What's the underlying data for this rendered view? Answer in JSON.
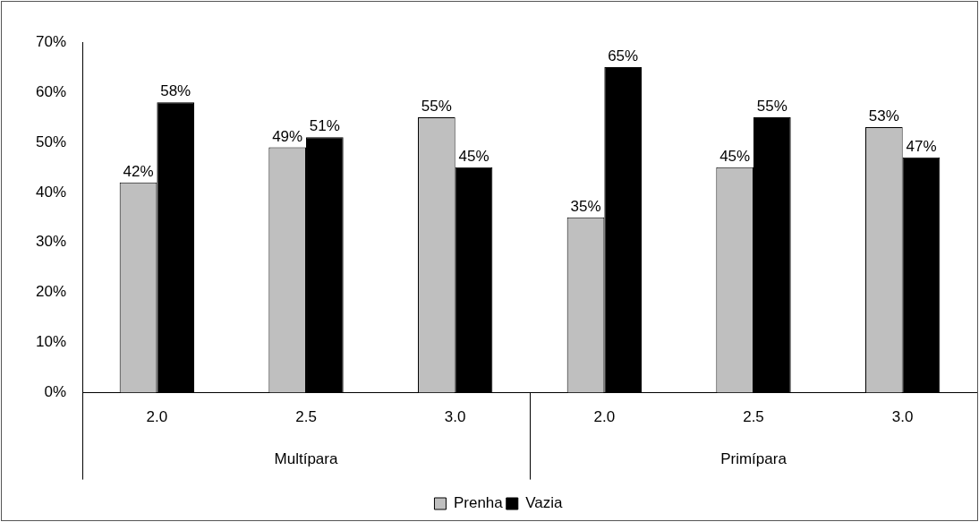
{
  "chart_data": {
    "type": "bar",
    "categories": [
      "2.0",
      "2.5",
      "3.0",
      "2.0",
      "2.5",
      "3.0"
    ],
    "series": [
      {
        "name": "Prenha",
        "color": "#bfbfbf",
        "values": [
          42,
          49,
          55,
          35,
          45,
          53
        ],
        "value_labels": [
          "42%",
          "49%",
          "55%",
          "35%",
          "45%",
          "53%"
        ]
      },
      {
        "name": "Vazia",
        "color": "#000000",
        "values": [
          58,
          51,
          45,
          65,
          55,
          47
        ],
        "value_labels": [
          "58%",
          "51%",
          "45%",
          "65%",
          "55%",
          "47%"
        ]
      }
    ],
    "ylim": [
      0,
      70
    ],
    "yticks": [
      {
        "value": 0,
        "label": "0%"
      },
      {
        "value": 10,
        "label": "10%"
      },
      {
        "value": 20,
        "label": "20%"
      },
      {
        "value": 30,
        "label": "30%"
      },
      {
        "value": 40,
        "label": "40%"
      },
      {
        "value": 50,
        "label": "50%"
      },
      {
        "value": 60,
        "label": "60%"
      },
      {
        "value": 70,
        "label": "70%"
      }
    ],
    "annotations": [
      "Multípara",
      "Primípara"
    ],
    "grid": false,
    "legend": "bottom"
  }
}
